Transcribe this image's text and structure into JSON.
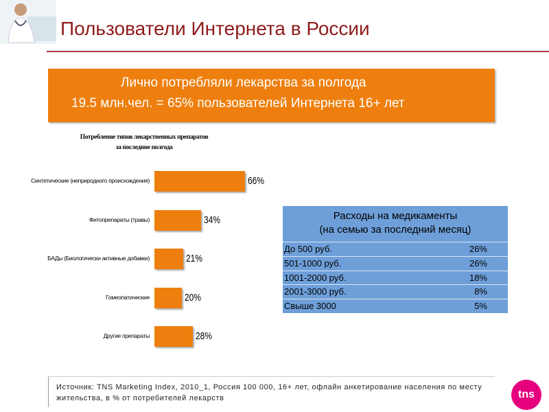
{
  "title": "Пользователи Интернета в России",
  "banner": {
    "lines": [
      "Лично потребляли лекарства за полгода",
      "19.5 млн.чел. =  65% пользователей Интернета 16+ лет"
    ]
  },
  "chart_data": {
    "type": "bar",
    "orientation": "horizontal",
    "title": "Потребление типов лекарственных препаратов\nза последние полгода",
    "categories": [
      "Синтетические (неприродного происхождения)",
      "Фитопрепараты (травы)",
      "БАДы (Биологически активные добавки)",
      "Гомеопатические",
      "Другие препараты"
    ],
    "values": [
      66,
      34,
      21,
      20,
      28
    ],
    "value_labels": [
      "66%",
      "34%",
      "21%",
      "20%",
      "28%"
    ],
    "color": "#ee7f0e"
  },
  "table": {
    "header": [
      "Расходы на медикаменты",
      "(на семью за последний месяц)"
    ],
    "rows": [
      [
        "До 500 руб.",
        "26%"
      ],
      [
        "501-1000 руб.",
        "26%"
      ],
      [
        "1001-2000 руб.",
        "18%"
      ],
      [
        "2001-3000 руб.",
        "8%"
      ],
      [
        "Свыше 3000",
        "5%"
      ]
    ]
  },
  "source": "Источник: TNS Marketing Index, 2010_1, Россия 100 000, 16+ лет, офлайн анкетирование населения по месту жительства, в % от потребителей лекарств",
  "logo": "tns"
}
